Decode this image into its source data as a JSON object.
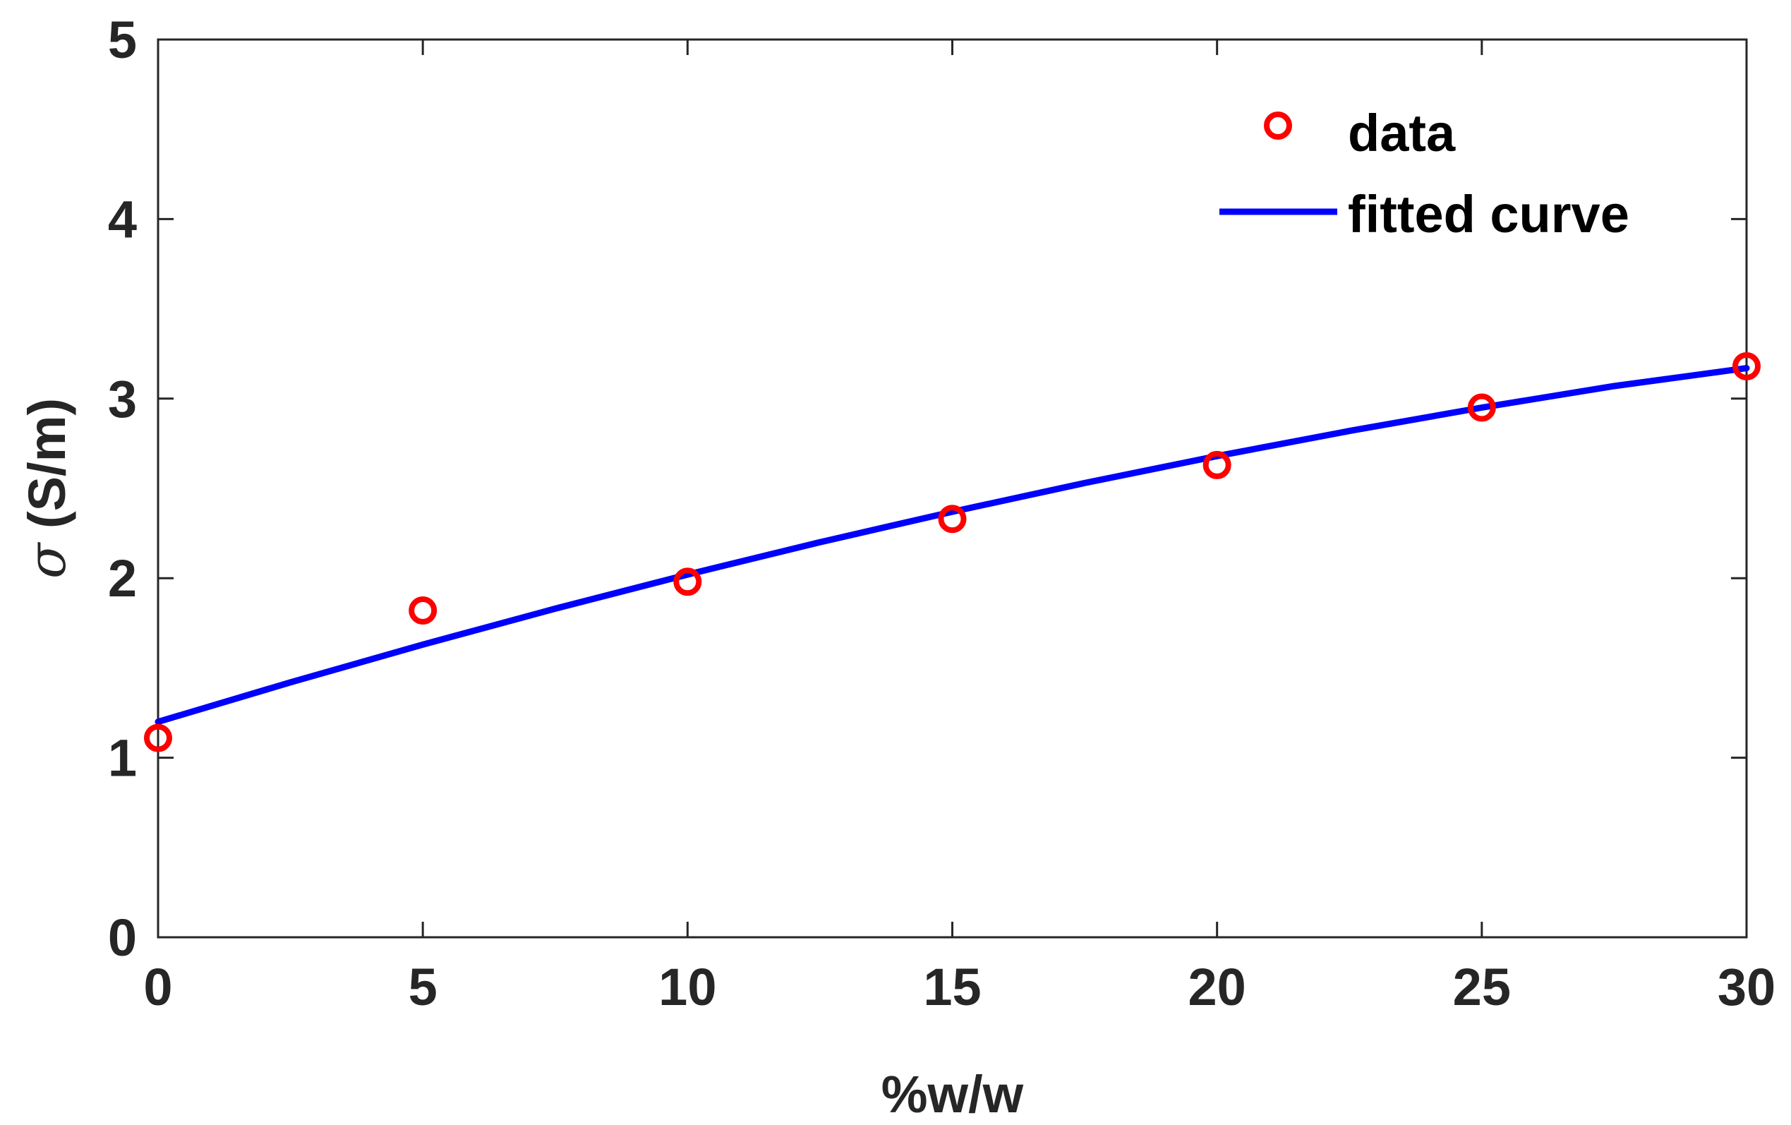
{
  "chart_data": {
    "type": "scatter",
    "title": "",
    "xlabel": "%w/w",
    "ylabel": {
      "symbol": "σ",
      "unit": " (S/m)"
    },
    "xlim": [
      0,
      30
    ],
    "ylim": [
      0,
      5
    ],
    "xticks": [
      0,
      5,
      10,
      15,
      20,
      25,
      30
    ],
    "yticks": [
      0,
      1,
      2,
      3,
      4,
      5
    ],
    "grid": false,
    "legend_position": "top-right",
    "series": [
      {
        "name": "data",
        "kind": "markers",
        "marker": "circle",
        "color": "#ff0000",
        "x": [
          0,
          5,
          10,
          15,
          20,
          25,
          30
        ],
        "y": [
          1.11,
          1.82,
          1.98,
          2.33,
          2.63,
          2.95,
          3.18
        ]
      },
      {
        "name": "fitted curve",
        "kind": "line",
        "color": "#0000ff",
        "x": [
          0,
          2.5,
          5,
          7.5,
          10,
          12.5,
          15,
          17.5,
          20,
          22.5,
          25,
          27.5,
          30
        ],
        "y": [
          1.2,
          1.42,
          1.63,
          1.83,
          2.02,
          2.2,
          2.37,
          2.53,
          2.68,
          2.82,
          2.95,
          3.07,
          3.17
        ]
      }
    ]
  }
}
